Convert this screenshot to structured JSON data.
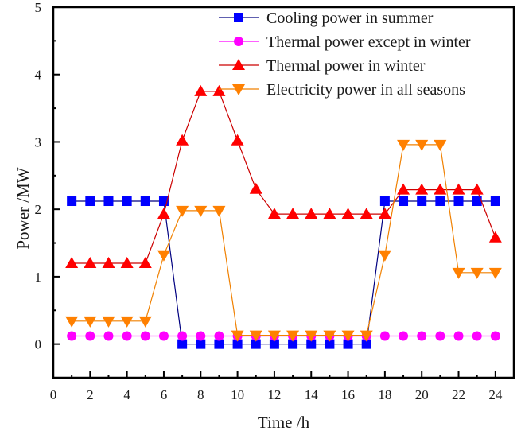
{
  "chart_data": {
    "type": "line",
    "title": "",
    "xlabel": "Time /h",
    "ylabel": "Power /MW",
    "xlim": [
      0,
      25
    ],
    "ylim": [
      -0.5,
      5
    ],
    "xticks": [
      0,
      2,
      4,
      6,
      8,
      10,
      12,
      14,
      16,
      18,
      20,
      22,
      24
    ],
    "xtick_labels": [
      "0",
      "2",
      "4",
      "6",
      "8",
      "10",
      "12",
      "14",
      "16",
      "18",
      "20",
      "22",
      "24"
    ],
    "xminor_step": 1,
    "yticks": [
      0,
      1,
      2,
      3,
      4,
      5
    ],
    "ytick_labels": [
      "0",
      "1",
      "2",
      "3",
      "4",
      "5"
    ],
    "yminor_step": 0.5,
    "grid": false,
    "legend_position": "top-right",
    "x": [
      1,
      2,
      3,
      4,
      5,
      6,
      7,
      8,
      9,
      10,
      11,
      12,
      13,
      14,
      15,
      16,
      17,
      18,
      19,
      20,
      21,
      22,
      23,
      24
    ],
    "series": [
      {
        "name": "Cooling power in summer",
        "color": "#0000ff",
        "line_color": "#000080",
        "marker": "square",
        "values": [
          2.12,
          2.12,
          2.12,
          2.12,
          2.12,
          2.12,
          0,
          0,
          0,
          0,
          0,
          0,
          0,
          0,
          0,
          0,
          0,
          2.12,
          2.12,
          2.12,
          2.12,
          2.12,
          2.12,
          2.12
        ]
      },
      {
        "name": "Thermal power except in winter",
        "color": "#ff00ff",
        "line_color": "#ff00ff",
        "marker": "circle",
        "values": [
          0.12,
          0.12,
          0.12,
          0.12,
          0.12,
          0.12,
          0.12,
          0.12,
          0.12,
          0.12,
          0.12,
          0.12,
          0.12,
          0.12,
          0.12,
          0.12,
          0.12,
          0.12,
          0.12,
          0.12,
          0.12,
          0.12,
          0.12,
          0.12
        ]
      },
      {
        "name": "Thermal power in winter",
        "color": "#ff0000",
        "line_color": "#cc0000",
        "marker": "triangle-up",
        "values": [
          1.2,
          1.2,
          1.2,
          1.2,
          1.2,
          1.93,
          3.02,
          3.75,
          3.75,
          3.02,
          2.3,
          1.93,
          1.93,
          1.93,
          1.93,
          1.93,
          1.93,
          1.93,
          2.29,
          2.29,
          2.29,
          2.29,
          2.29,
          1.58
        ]
      },
      {
        "name": "Electricity power in all seasons",
        "color": "#ff8000",
        "line_color": "#f08000",
        "marker": "triangle-down",
        "values": [
          0.34,
          0.34,
          0.34,
          0.34,
          0.34,
          1.32,
          1.98,
          1.98,
          1.98,
          0.13,
          0.13,
          0.13,
          0.13,
          0.13,
          0.13,
          0.13,
          0.13,
          1.32,
          2.96,
          2.96,
          2.96,
          1.06,
          1.06,
          1.06
        ]
      }
    ]
  }
}
